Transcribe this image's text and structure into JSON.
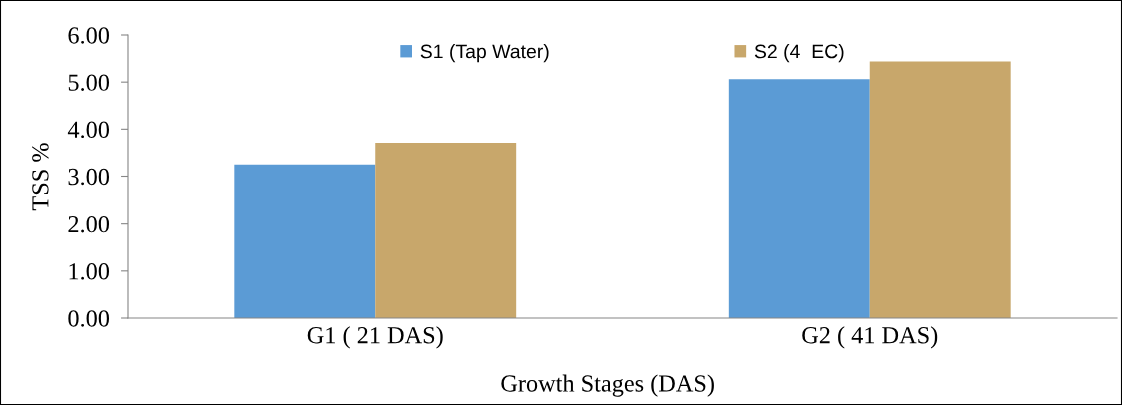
{
  "chart_data": {
    "type": "bar",
    "xlabel": "Growth Stages (DAS)",
    "ylabel": "TSS %",
    "categories": [
      "G1 ( 21 DAS)",
      "G2 ( 41 DAS)"
    ],
    "series": [
      {
        "name": "S1 (Tap Water)",
        "color": "#5b9bd5",
        "values": [
          3.25,
          5.06
        ]
      },
      {
        "name": "S2 (4  EC)",
        "color": "#c8a76b",
        "values": [
          3.71,
          5.44
        ]
      }
    ],
    "ylim": [
      0,
      6
    ],
    "yticks": [
      {
        "value": 0,
        "label": "0.00"
      },
      {
        "value": 1,
        "label": "1.00"
      },
      {
        "value": 2,
        "label": "2.00"
      },
      {
        "value": 3,
        "label": "3.00"
      },
      {
        "value": 4,
        "label": "4.00"
      },
      {
        "value": 5,
        "label": "5.00"
      },
      {
        "value": 6,
        "label": "6.00"
      }
    ],
    "legend": "top",
    "grid": false
  }
}
